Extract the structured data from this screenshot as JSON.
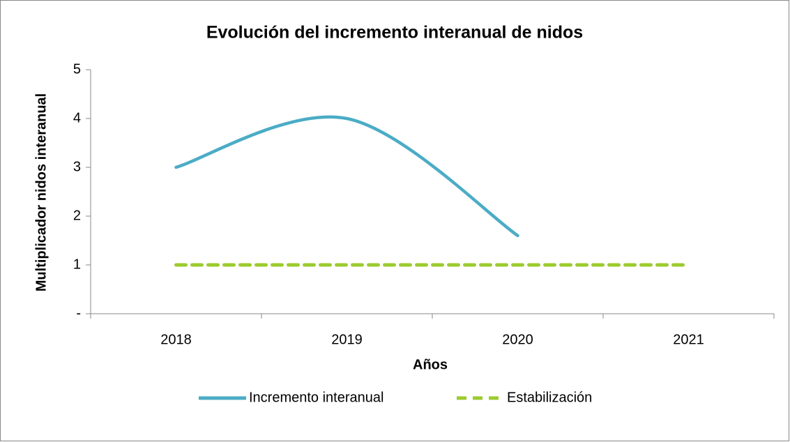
{
  "chart_data": {
    "type": "line",
    "title": "Evolución del incremento interanual de nidos",
    "x_label": "Años",
    "y_label": "Multiplicador nidos interanual",
    "categories": [
      "2018",
      "2019",
      "2020",
      "2021"
    ],
    "series": [
      {
        "name": "Incremento interanual",
        "color": "#4bacc6",
        "values": [
          3,
          4,
          1.6,
          null
        ],
        "smooth": true,
        "dashed": false
      },
      {
        "name": "Estabilización",
        "color": "#9bcb2f",
        "values": [
          1,
          1,
          1,
          1
        ],
        "smooth": false,
        "dashed": true
      }
    ],
    "ylim": [
      0,
      5
    ],
    "yticks": [
      {
        "value": 0,
        "label": "-"
      },
      1,
      2,
      3,
      4,
      5
    ],
    "grid": false,
    "legend": "bottom"
  }
}
